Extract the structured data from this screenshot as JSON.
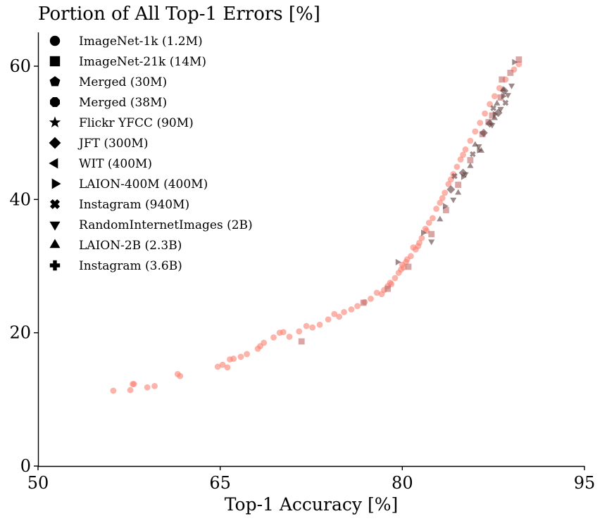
{
  "chart_data": {
    "type": "scatter",
    "title": "Portion of All Top-1 Errors [%]",
    "xlabel": "Top-1 Accuracy [%]",
    "ylabel": "",
    "xlim": [
      50,
      95
    ],
    "ylim": [
      0,
      65
    ],
    "xticks": [
      50,
      65,
      80,
      95
    ],
    "yticks": [
      0,
      20,
      40,
      60
    ],
    "grid": false,
    "legend_position": "top-left",
    "colors": {
      "salmon": "#fa8072",
      "dark": "#5c3a3a",
      "muted": "#c06a6a"
    },
    "legend": [
      {
        "label": "ImageNet-1k (1.2M)",
        "marker": "circle"
      },
      {
        "label": "ImageNet-21k (14M)",
        "marker": "square"
      },
      {
        "label": "Merged (30M)",
        "marker": "pentagon"
      },
      {
        "label": "Merged (38M)",
        "marker": "octagon"
      },
      {
        "label": "Flickr YFCC (90M)",
        "marker": "star"
      },
      {
        "label": "JFT (300M)",
        "marker": "diamond"
      },
      {
        "label": "WIT (400M)",
        "marker": "triangle-left"
      },
      {
        "label": "LAION-400M (400M)",
        "marker": "triangle-right"
      },
      {
        "label": "Instagram (940M)",
        "marker": "x-filled"
      },
      {
        "label": "RandomInternetImages (2B)",
        "marker": "triangle-down"
      },
      {
        "label": "LAION-2B (2.3B)",
        "marker": "triangle-up"
      },
      {
        "label": "Instagram (3.6B)",
        "marker": "plus-filled"
      }
    ],
    "series": [
      {
        "marker": "circle",
        "color": "salmon",
        "points": [
          [
            56.2,
            11.3
          ],
          [
            57.6,
            11.4
          ],
          [
            57.8,
            12.3
          ],
          [
            57.9,
            12.3
          ],
          [
            59.0,
            11.8
          ],
          [
            59.6,
            12.0
          ],
          [
            61.5,
            13.8
          ],
          [
            61.7,
            13.5
          ],
          [
            64.8,
            14.9
          ],
          [
            65.2,
            15.2
          ],
          [
            65.6,
            14.8
          ],
          [
            65.8,
            16.0
          ],
          [
            66.1,
            16.1
          ],
          [
            66.7,
            16.4
          ],
          [
            67.2,
            16.8
          ],
          [
            68.1,
            17.6
          ],
          [
            68.3,
            18.0
          ],
          [
            68.6,
            18.5
          ],
          [
            69.4,
            19.3
          ],
          [
            69.9,
            20.0
          ],
          [
            70.2,
            20.1
          ],
          [
            70.7,
            19.4
          ],
          [
            71.5,
            20.2
          ],
          [
            72.1,
            21.0
          ],
          [
            72.6,
            20.8
          ],
          [
            73.2,
            21.2
          ],
          [
            73.9,
            22.0
          ],
          [
            74.4,
            22.8
          ],
          [
            74.8,
            22.4
          ],
          [
            75.2,
            23.1
          ],
          [
            75.8,
            23.5
          ],
          [
            76.3,
            24.0
          ],
          [
            76.9,
            24.6
          ],
          [
            77.4,
            25.1
          ],
          [
            77.9,
            26.0
          ],
          [
            78.3,
            25.8
          ],
          [
            78.8,
            27.0
          ],
          [
            79.1,
            27.3
          ],
          [
            79.4,
            28.2
          ],
          [
            79.7,
            29.0
          ],
          [
            79.9,
            29.5
          ],
          [
            80.1,
            29.8
          ],
          [
            80.4,
            31.0
          ],
          [
            80.7,
            31.5
          ],
          [
            80.9,
            32.8
          ],
          [
            81.1,
            32.5
          ],
          [
            81.4,
            33.5
          ],
          [
            81.6,
            34.2
          ],
          [
            81.9,
            35.6
          ],
          [
            82.2,
            36.5
          ],
          [
            82.5,
            37.2
          ],
          [
            82.8,
            38.6
          ],
          [
            83.1,
            39.5
          ],
          [
            83.5,
            41.0
          ],
          [
            83.8,
            42.3
          ],
          [
            84.2,
            43.8
          ],
          [
            84.5,
            44.9
          ],
          [
            84.8,
            46.0
          ],
          [
            85.2,
            47.5
          ],
          [
            85.6,
            48.8
          ],
          [
            86.0,
            50.2
          ],
          [
            86.4,
            51.5
          ],
          [
            86.8,
            52.9
          ],
          [
            87.2,
            54.3
          ],
          [
            87.6,
            55.5
          ],
          [
            88.0,
            56.7
          ],
          [
            88.5,
            58.0
          ],
          [
            89.2,
            59.5
          ],
          [
            89.6,
            60.3
          ],
          [
            80.3,
            30.6
          ],
          [
            79.0,
            27.5
          ],
          [
            80.0,
            30.2
          ],
          [
            78.5,
            26.4
          ],
          [
            81.3,
            33.0
          ],
          [
            82.0,
            35.3
          ],
          [
            83.3,
            40.2
          ],
          [
            84.0,
            43.0
          ],
          [
            85.0,
            46.7
          ]
        ]
      },
      {
        "marker": "square",
        "color": "muted",
        "points": [
          [
            71.7,
            18.7
          ],
          [
            76.8,
            24.5
          ],
          [
            78.8,
            26.6
          ],
          [
            80.5,
            29.9
          ],
          [
            82.4,
            34.8
          ],
          [
            83.6,
            38.4
          ],
          [
            84.6,
            42.2
          ],
          [
            85.6,
            45.9
          ],
          [
            86.6,
            49.8
          ],
          [
            87.4,
            52.6
          ],
          [
            88.1,
            55.3
          ],
          [
            88.9,
            59.0
          ],
          [
            89.6,
            61.0
          ],
          [
            88.2,
            58.0
          ],
          [
            87.1,
            51.6
          ]
        ]
      },
      {
        "marker": "triangle-up",
        "color": "dark",
        "points": [
          [
            83.1,
            37.0
          ],
          [
            84.6,
            41.0
          ],
          [
            85.6,
            45.0
          ],
          [
            86.5,
            47.3
          ],
          [
            87.6,
            52.2
          ],
          [
            88.3,
            56.5
          ],
          [
            87.8,
            54.4
          ],
          [
            86.0,
            48.2
          ]
        ]
      },
      {
        "marker": "triangle-down",
        "color": "dark",
        "points": [
          [
            82.4,
            33.7
          ],
          [
            84.2,
            40.0
          ],
          [
            85.2,
            43.8
          ],
          [
            86.3,
            48.0
          ],
          [
            87.4,
            51.2
          ],
          [
            88.1,
            53.6
          ],
          [
            88.7,
            55.7
          ],
          [
            89.0,
            57.1
          ]
        ]
      },
      {
        "marker": "triangle-right",
        "color": "dark",
        "points": [
          [
            79.6,
            30.6
          ],
          [
            81.7,
            35.0
          ],
          [
            83.5,
            39.0
          ],
          [
            85.0,
            43.4
          ],
          [
            86.3,
            47.4
          ],
          [
            87.6,
            52.8
          ],
          [
            88.3,
            55.5
          ],
          [
            89.2,
            60.6
          ]
        ]
      },
      {
        "marker": "diamond",
        "color": "dark",
        "points": [
          [
            84.0,
            41.5
          ],
          [
            85.0,
            44.0
          ],
          [
            86.7,
            50.0
          ],
          [
            87.2,
            51.4
          ],
          [
            87.9,
            53.0
          ],
          [
            88.4,
            56.3
          ]
        ]
      },
      {
        "marker": "x-filled",
        "color": "dark",
        "points": [
          [
            84.3,
            43.5
          ],
          [
            85.8,
            46.8
          ],
          [
            87.5,
            53.7
          ],
          [
            88.5,
            54.5
          ]
        ]
      }
    ]
  }
}
